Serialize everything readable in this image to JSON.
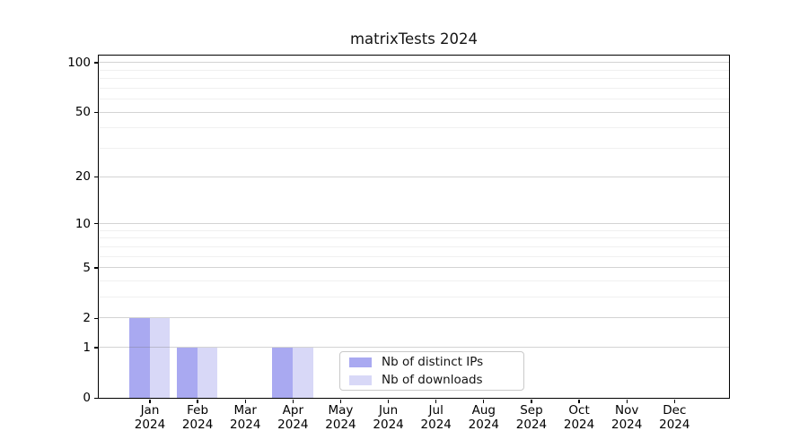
{
  "figure": {
    "title": "matrixTests 2024"
  },
  "chart_data": {
    "type": "bar",
    "title": "matrixTests 2024",
    "categories": [
      "Jan",
      "Feb",
      "Mar",
      "Apr",
      "May",
      "Jun",
      "Jul",
      "Aug",
      "Sep",
      "Oct",
      "Nov",
      "Dec"
    ],
    "x_year_label": "2024",
    "series": [
      {
        "name": "Nb of distinct IPs",
        "color": "#a9a9f1",
        "values": [
          2,
          1,
          0,
          1,
          0,
          0,
          0,
          0,
          0,
          0,
          0,
          0
        ]
      },
      {
        "name": "Nb of downloads",
        "color": "#d8d8f7",
        "values": [
          2,
          1,
          0,
          1,
          0,
          0,
          0,
          0,
          0,
          0,
          0,
          0
        ]
      }
    ],
    "yscale": "log1p",
    "ylim": [
      0,
      110
    ],
    "y_ticks": [
      0,
      1,
      2,
      5,
      10,
      20,
      50,
      100
    ],
    "y_minor_ticks": [
      3,
      4,
      6,
      7,
      8,
      9,
      30,
      40,
      60,
      70,
      80,
      90
    ],
    "grid": "horizontal",
    "legend_position": "lower-center-left",
    "colors": {
      "grid_major": "#c4c4c4",
      "grid_minor": "#f0f0f0",
      "spine": "#000000",
      "legend_border": "#c9c9c9"
    }
  }
}
